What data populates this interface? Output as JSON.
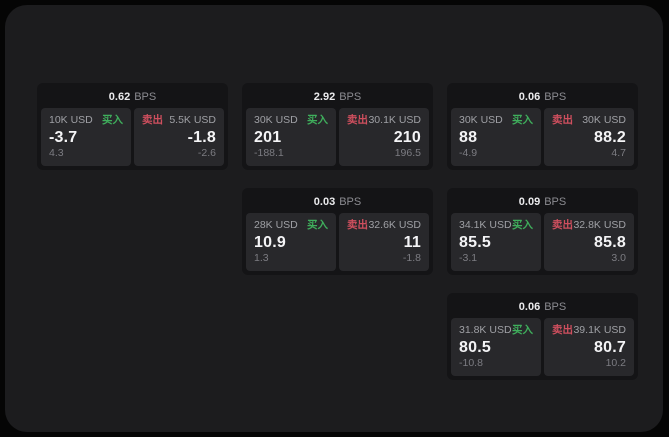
{
  "colors": {
    "buy_green": "#3fae5c",
    "sell_red": "#cf4f5e",
    "panel_bg": "#1c1c1e",
    "card_bg": "#141416",
    "tile_bg": "#28282b"
  },
  "cards": [
    {
      "header": {
        "value": "0.62",
        "unit": "BPS"
      },
      "buy": {
        "amount": "10K USD",
        "action": "买入",
        "price": "-3.7",
        "change": "4.3"
      },
      "sell": {
        "action": "卖出",
        "amount": "5.5K USD",
        "price": "-1.8",
        "change": "-2.6"
      }
    },
    {
      "header": {
        "value": "2.92",
        "unit": "BPS"
      },
      "buy": {
        "amount": "30K USD",
        "action": "买入",
        "price": "201",
        "change": "-188.1"
      },
      "sell": {
        "action": "卖出",
        "amount": "30.1K USD",
        "price": "210",
        "change": "196.5"
      }
    },
    {
      "header": {
        "value": "0.06",
        "unit": "BPS"
      },
      "buy": {
        "amount": "30K USD",
        "action": "买入",
        "price": "88",
        "change": "-4.9"
      },
      "sell": {
        "action": "卖出",
        "amount": "30K USD",
        "price": "88.2",
        "change": "4.7"
      }
    },
    {
      "header": {
        "value": "0.03",
        "unit": "BPS"
      },
      "buy": {
        "amount": "28K USD",
        "action": "买入",
        "price": "10.9",
        "change": "1.3"
      },
      "sell": {
        "action": "卖出",
        "amount": "32.6K USD",
        "price": "11",
        "change": "-1.8"
      }
    },
    {
      "header": {
        "value": "0.09",
        "unit": "BPS"
      },
      "buy": {
        "amount": "34.1K USD",
        "action": "买入",
        "price": "85.5",
        "change": "-3.1"
      },
      "sell": {
        "action": "卖出",
        "amount": "32.8K USD",
        "price": "85.8",
        "change": "3.0"
      }
    },
    {
      "header": {
        "value": "0.06",
        "unit": "BPS"
      },
      "buy": {
        "amount": "31.8K USD",
        "action": "买入",
        "price": "80.5",
        "change": "-10.8"
      },
      "sell": {
        "action": "卖出",
        "amount": "39.1K USD",
        "price": "80.7",
        "change": "10.2"
      }
    }
  ]
}
